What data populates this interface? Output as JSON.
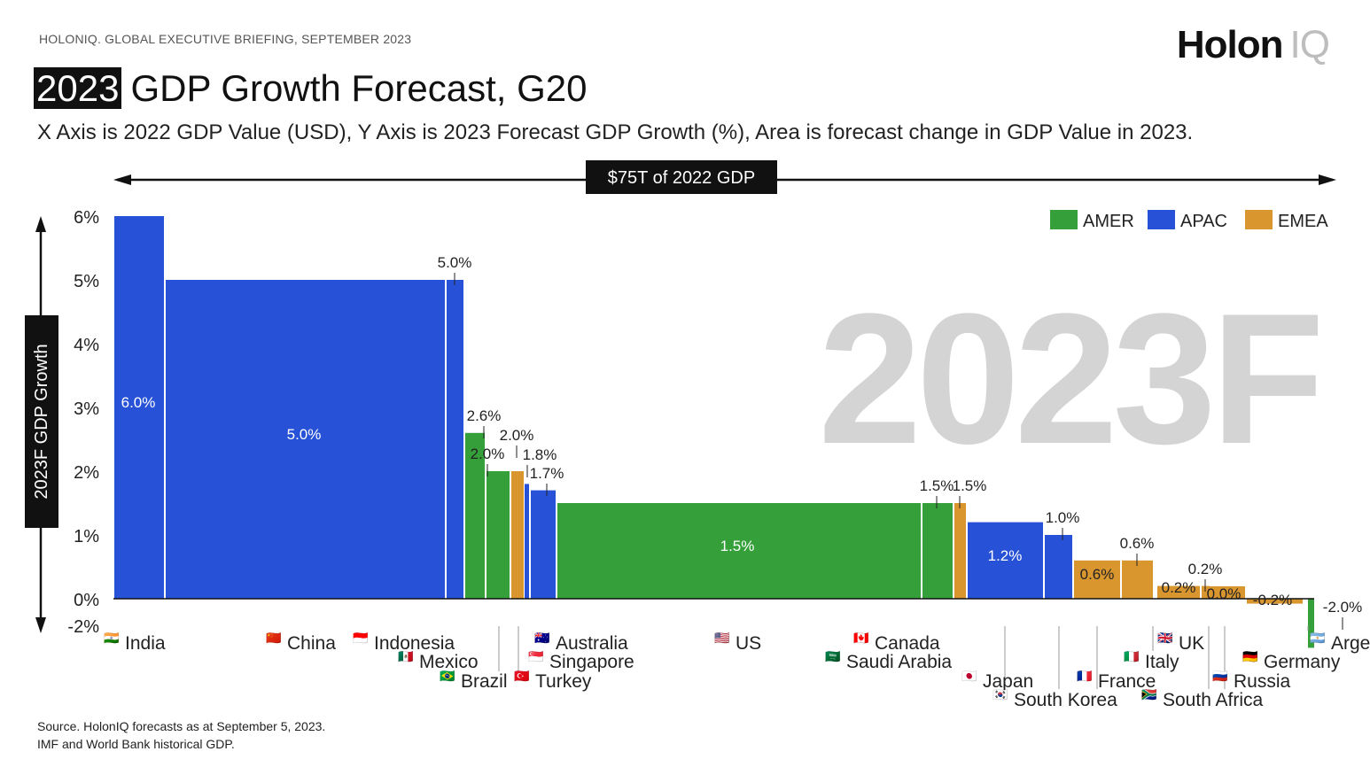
{
  "header": {
    "briefing": "HOLONIQ. GLOBAL EXECUTIVE BRIEFING, SEPTEMBER 2023",
    "logo_main": "Holon",
    "logo_sub": "IQ",
    "title_year": "2023",
    "title_rest": "GDP Growth Forecast, G20",
    "subtitle": "X Axis is 2022 GDP Value (USD), Y Axis is 2023 Forecast GDP Growth (%), Area is forecast change in GDP Value in 2023."
  },
  "source": {
    "line1": "Source. HolonIQ forecasts as at September 5, 2023.",
    "line2": "IMF and World Bank historical GDP."
  },
  "chart_data": {
    "type": "bar",
    "variable_width": true,
    "xlabel": "$75T of 2022 GDP",
    "ylabel": "2023F GDP Growth",
    "watermark": "2023F",
    "ylim": [
      -2,
      6
    ],
    "yticks": [
      "6%",
      "5%",
      "4%",
      "3%",
      "2%",
      "1%",
      "0%",
      "-2%"
    ],
    "legend_position": "top-right",
    "regions": [
      {
        "name": "AMER",
        "color": "#35a03a"
      },
      {
        "name": "APAC",
        "color": "#2751d6"
      },
      {
        "name": "EMEA",
        "color": "#d9952e"
      }
    ],
    "countries": [
      {
        "name": "India",
        "flag": "🇮🇳",
        "region": "APAC",
        "growth": 6.0,
        "label": "6.0%"
      },
      {
        "name": "China",
        "flag": "🇨🇳",
        "region": "APAC",
        "growth": 5.0,
        "label": "5.0%"
      },
      {
        "name": "Indonesia",
        "flag": "🇮🇩",
        "region": "APAC",
        "growth": 5.0,
        "label": "5.0%"
      },
      {
        "name": "Mexico",
        "flag": "🇲🇽",
        "region": "AMER",
        "growth": 2.6,
        "label": "2.6%"
      },
      {
        "name": "Brazil",
        "flag": "🇧🇷",
        "region": "AMER",
        "growth": 2.0,
        "label": "2.0%"
      },
      {
        "name": "Turkey",
        "flag": "🇹🇷",
        "region": "EMEA",
        "growth": 2.0,
        "label": "2.0%"
      },
      {
        "name": "Australia",
        "flag": "🇦🇺",
        "region": "APAC",
        "growth": 1.8,
        "label": "1.8%"
      },
      {
        "name": "Singapore",
        "flag": "🇸🇬",
        "region": "APAC",
        "growth": 1.7,
        "label": "1.7%"
      },
      {
        "name": "US",
        "flag": "🇺🇸",
        "region": "AMER",
        "growth": 1.5,
        "label": "1.5%"
      },
      {
        "name": "Canada",
        "flag": "🇨🇦",
        "region": "AMER",
        "growth": 1.5,
        "label": "1.5%"
      },
      {
        "name": "Saudi Arabia",
        "flag": "🇸🇦",
        "region": "EMEA",
        "growth": 1.5,
        "label": "1.5%"
      },
      {
        "name": "Japan",
        "flag": "🇯🇵",
        "region": "APAC",
        "growth": 1.2,
        "label": "1.2%"
      },
      {
        "name": "South Korea",
        "flag": "🇰🇷",
        "region": "APAC",
        "growth": 1.0,
        "label": "1.0%"
      },
      {
        "name": "France",
        "flag": "🇫🇷",
        "region": "EMEA",
        "growth": 0.6,
        "label": "0.6%"
      },
      {
        "name": "Italy",
        "flag": "🇮🇹",
        "region": "EMEA",
        "growth": 0.6,
        "label": "0.6%"
      },
      {
        "name": "UK",
        "flag": "🇬🇧",
        "region": "EMEA",
        "growth": 0.2,
        "label": "0.2%"
      },
      {
        "name": "South Africa",
        "flag": "🇿🇦",
        "region": "EMEA",
        "growth": 0.2,
        "label": "0.2%"
      },
      {
        "name": "Russia",
        "flag": "🇷🇺",
        "region": "EMEA",
        "growth": 0.0,
        "label": "0.0%"
      },
      {
        "name": "Germany",
        "flag": "🇩🇪",
        "region": "EMEA",
        "growth": -0.2,
        "label": "-0.2%"
      },
      {
        "name": "Argentina",
        "flag": "🇦🇷",
        "region": "AMER",
        "growth": -2.0,
        "label": "-2.0%",
        "display_name": "Arge"
      }
    ]
  }
}
